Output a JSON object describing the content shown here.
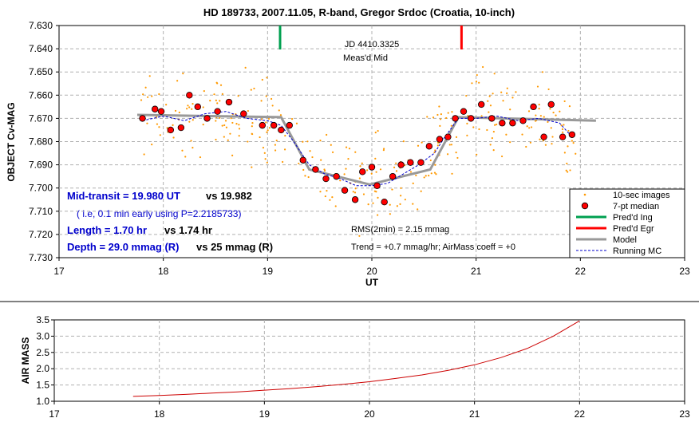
{
  "top_chart": {
    "title": "HD 189733, 2007.11.05, R-band, Gregor Srdoc (Croatia, 10-inch)",
    "ylabel": "OBJECT Cv-MAG",
    "xlabel": "UT",
    "x_ticks": [
      "17",
      "18",
      "19",
      "20",
      "21",
      "22",
      "23"
    ],
    "y_ticks": [
      "7.630",
      "7.640",
      "7.650",
      "7.660",
      "7.670",
      "7.680",
      "7.690",
      "7.700",
      "7.710",
      "7.720",
      "7.730"
    ],
    "mid_label_1": "JD 4410.3325",
    "mid_label_2": "Meas'd Mid",
    "mid_transit": "Mid-transit = 19.980 UT",
    "mid_transit_vs": "vs 19.982",
    "early_note": "( i.e, 0.1 min early using P=2.2185733)",
    "length": "Length = 1.70 hr",
    "length_vs": "vs 1.74 hr",
    "depth": "Depth = 29.0 mmag (R)",
    "depth_vs": "vs 25 mmag (R)",
    "rms": "RMS(2min) = 2.15 mmag",
    "trend": "Trend = +0.7 mmag/hr; AirMass coeff = +0",
    "legend": {
      "raw": "10-sec images",
      "median": "7-pt median",
      "ing": "Pred'd Ing",
      "egr": "Pred'd Egr",
      "model": "Model",
      "running": "Running MC"
    }
  },
  "bottom_chart": {
    "ylabel": "AIR MASS",
    "x_ticks": [
      "17",
      "18",
      "19",
      "20",
      "21",
      "22",
      "23"
    ],
    "y_ticks": [
      "1.0",
      "1.5",
      "2.0",
      "2.5",
      "3.0",
      "3.5"
    ]
  },
  "colors": {
    "raw": "#ff9900",
    "median_fill": "#ff0000",
    "ingress": "#00a050",
    "egress": "#ff0000",
    "model": "#999999",
    "running": "#0000cc",
    "airmass": "#cc0000",
    "blue_text": "#0000cc"
  },
  "chart_data": [
    {
      "type": "scatter",
      "title": "HD 189733, 2007.11.05, R-band, Gregor Srdoc (Croatia, 10-inch)",
      "xlabel": "UT",
      "ylabel": "OBJECT Cv-MAG",
      "xlim": [
        17,
        23
      ],
      "ylim": [
        7.63,
        7.73
      ],
      "y_inverted": true,
      "grid": true,
      "legend_position": "bottom-right",
      "predicted_ingress": 19.12,
      "predicted_egress": 20.86,
      "measured_mid": 19.98,
      "series": [
        {
          "name": "7-pt median",
          "x": [
            17.8,
            17.92,
            17.98,
            18.07,
            18.17,
            18.25,
            18.33,
            18.42,
            18.52,
            18.63,
            18.77,
            18.95,
            19.06,
            19.13,
            19.21,
            19.34,
            19.46,
            19.56,
            19.66,
            19.74,
            19.84,
            19.91,
            20.0,
            20.05,
            20.12,
            20.2,
            20.28,
            20.37,
            20.47,
            20.55,
            20.65,
            20.73,
            20.8,
            20.88,
            20.95,
            21.05,
            21.15,
            21.25,
            21.35,
            21.45,
            21.55,
            21.65,
            21.72,
            21.83,
            21.92
          ],
          "y": [
            7.67,
            7.666,
            7.667,
            7.675,
            7.674,
            7.66,
            7.665,
            7.67,
            7.667,
            7.663,
            7.668,
            7.673,
            7.673,
            7.675,
            7.673,
            7.688,
            7.692,
            7.696,
            7.695,
            7.701,
            7.705,
            7.693,
            7.691,
            7.699,
            7.706,
            7.695,
            7.69,
            7.689,
            7.689,
            7.682,
            7.679,
            7.678,
            7.67,
            7.667,
            7.67,
            7.664,
            7.67,
            7.672,
            7.672,
            7.671,
            7.665,
            7.678,
            7.664,
            7.678,
            7.677
          ]
        },
        {
          "name": "Model",
          "x": [
            17.75,
            19.13,
            19.4,
            19.98,
            20.56,
            20.83,
            22.15
          ],
          "y": [
            7.6685,
            7.6695,
            7.692,
            7.6985,
            7.692,
            7.6695,
            7.671
          ]
        },
        {
          "name": "Running MC",
          "x": [
            17.8,
            18.0,
            18.2,
            18.4,
            18.6,
            18.8,
            19.0,
            19.13,
            19.25,
            19.4,
            19.55,
            19.7,
            19.85,
            20.0,
            20.15,
            20.3,
            20.45,
            20.6,
            20.7,
            20.83,
            21.0,
            21.2,
            21.4,
            21.6,
            21.8,
            21.92
          ],
          "y": [
            7.671,
            7.669,
            7.671,
            7.668,
            7.667,
            7.67,
            7.671,
            7.673,
            7.68,
            7.69,
            7.694,
            7.696,
            7.699,
            7.699,
            7.698,
            7.694,
            7.69,
            7.685,
            7.678,
            7.67,
            7.67,
            7.669,
            7.671,
            7.67,
            7.672,
            7.678
          ]
        }
      ]
    },
    {
      "type": "line",
      "xlabel": "",
      "ylabel": "AIR MASS",
      "xlim": [
        17,
        23
      ],
      "ylim": [
        1.0,
        3.5
      ],
      "grid": true,
      "series": [
        {
          "name": "",
          "x": [
            17.75,
            18.0,
            18.25,
            18.5,
            18.75,
            19.0,
            19.25,
            19.5,
            19.75,
            20.0,
            20.25,
            20.5,
            20.75,
            21.0,
            21.25,
            21.5,
            21.75,
            22.0
          ],
          "y": [
            1.15,
            1.18,
            1.21,
            1.25,
            1.29,
            1.34,
            1.39,
            1.45,
            1.52,
            1.6,
            1.7,
            1.81,
            1.95,
            2.12,
            2.34,
            2.62,
            3.0,
            3.47
          ]
        }
      ]
    }
  ]
}
